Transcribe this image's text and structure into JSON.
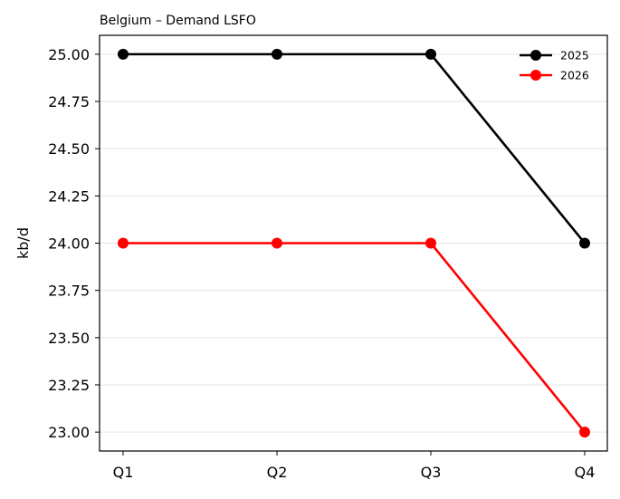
{
  "chart_data": {
    "type": "line",
    "title": "Belgium – Demand LSFO",
    "xlabel": "",
    "ylabel": "kb/d",
    "categories": [
      "Q1",
      "Q2",
      "Q3",
      "Q4"
    ],
    "series": [
      {
        "name": "2025",
        "values": [
          25.0,
          25.0,
          25.0,
          24.0
        ],
        "color": "#000000"
      },
      {
        "name": "2026",
        "values": [
          24.0,
          24.0,
          24.0,
          23.0
        ],
        "color": "#ff0000"
      }
    ],
    "yticks": [
      "23.00",
      "23.25",
      "23.50",
      "23.75",
      "24.00",
      "24.25",
      "24.50",
      "24.75",
      "25.00"
    ],
    "ylim": [
      22.9,
      25.1
    ],
    "grid": "horizontal",
    "legend_position": "top-right",
    "marker": "circle"
  }
}
